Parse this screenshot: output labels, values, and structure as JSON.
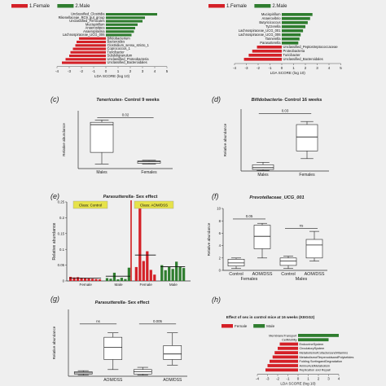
{
  "chart_data": [
    {
      "id": "a",
      "type": "bar",
      "orientation": "horizontal",
      "panel_label": "",
      "legend": [
        {
          "name": "1.Female",
          "color": "#d42027"
        },
        {
          "name": "2.Male",
          "color": "#2f7d2f"
        }
      ],
      "legend_placement": "top",
      "xlabel": "LDA SCORE (log 10)",
      "xlim": [
        -4,
        5
      ],
      "xticks": [
        -4,
        -3,
        -2,
        -1,
        0,
        1,
        2,
        3,
        4,
        5
      ],
      "rows": [
        {
          "label": "Unclassified_Clostridia",
          "value": 4.2,
          "group": 1
        },
        {
          "label": "Rikenellaceae_RC9_gut_group",
          "value": 3.2,
          "group": 1
        },
        {
          "label": "Unclassified_Firmicutes",
          "value": 3.0,
          "group": 1
        },
        {
          "label": "Mucispirillum",
          "value": 2.6,
          "group": 1
        },
        {
          "label": "Anaerostipes",
          "value": 2.4,
          "group": 1
        },
        {
          "label": "Anaeroplasma",
          "value": 2.3,
          "group": 1
        },
        {
          "label": "Lachnospiraceae_UCG_006",
          "value": 2.1,
          "group": 1
        },
        {
          "label": "Bifidobacterium",
          "value": -2.2,
          "group": 0
        },
        {
          "label": "Bacteroides",
          "value": -2.4,
          "group": 0
        },
        {
          "label": "Clostridium_sensu_stricto_1",
          "value": -2.5,
          "group": 0
        },
        {
          "label": "Coprococcus_1",
          "value": -2.7,
          "group": 0
        },
        {
          "label": "Turicibacter",
          "value": -2.9,
          "group": 0
        },
        {
          "label": "Subdoligranulum",
          "value": -3.0,
          "group": 0
        },
        {
          "label": "Unclassified_Proteobacteria",
          "value": -3.3,
          "group": 0
        },
        {
          "label": "Unclassified_Bacteroidales",
          "value": -3.6,
          "group": 0
        }
      ]
    },
    {
      "id": "b",
      "type": "bar",
      "orientation": "horizontal",
      "panel_label": "",
      "legend": [
        {
          "name": "1.Female",
          "color": "#d42027"
        },
        {
          "name": "2.Male",
          "color": "#2f7d2f"
        }
      ],
      "legend_placement": "top",
      "xlabel": "LDA SCORE (log 10)",
      "xlim": [
        -4,
        5
      ],
      "xticks": [
        -4,
        -3,
        -2,
        -1,
        0,
        1,
        2,
        3,
        4,
        5
      ],
      "rows": [
        {
          "label": "Mucispirillum",
          "value": 2.6,
          "group": 1
        },
        {
          "label": "Anaerovibrio",
          "value": 2.4,
          "group": 1
        },
        {
          "label": "Butyricicoccus",
          "value": 2.2,
          "group": 1
        },
        {
          "label": "Tyzzerella",
          "value": 2.0,
          "group": 1
        },
        {
          "label": "Lachnospiraceae_UCG_001",
          "value": 1.8,
          "group": 1
        },
        {
          "label": "Lachnospiraceae_UCG_006",
          "value": 1.6,
          "group": 1
        },
        {
          "label": "Tannerella",
          "value": 1.5,
          "group": 1
        },
        {
          "label": "Parasutterella",
          "value": 1.4,
          "group": 1
        },
        {
          "label": "Unclassified_Peptostreptococcaceae",
          "value": -2.1,
          "group": 0
        },
        {
          "label": "Proteobacteria",
          "value": -2.5,
          "group": 0
        },
        {
          "label": "Turicibacter",
          "value": -2.8,
          "group": 0
        },
        {
          "label": "Unclassified_Bacteroidales",
          "value": -3.2,
          "group": 0
        }
      ]
    },
    {
      "id": "c",
      "type": "box",
      "panel_label": "(c)",
      "title_italic": "Tenericutes",
      "title_rest": "- Control 9 weeks",
      "ylabel": "Relative abundance",
      "ylim": [
        0,
        2.5
      ],
      "categories": [
        "Males",
        "Females"
      ],
      "boxes": [
        {
          "min": 0.2,
          "q1": 0.7,
          "median": 1.9,
          "q3": 2.0,
          "max": 2.1
        },
        {
          "min": 0.2,
          "q1": 0.23,
          "median": 0.3,
          "q3": 0.33,
          "max": 0.36
        }
      ],
      "significance": [
        {
          "label": "0.02",
          "from": 0,
          "to": 1,
          "y": 2.2
        }
      ]
    },
    {
      "id": "d",
      "type": "box",
      "panel_label": "(d)",
      "title_italic": "Bifidobacteria",
      "title_rest": "- Control 16 weeks",
      "ylabel": "Relative abundance",
      "ylim": [
        0,
        20
      ],
      "categories": [
        "Males",
        "Females"
      ],
      "boxes": [
        {
          "min": 0.2,
          "q1": 0.5,
          "median": 1.1,
          "q3": 2.0,
          "max": 2.8
        },
        {
          "min": 4.0,
          "q1": 6.5,
          "median": 11.0,
          "q3": 15.0,
          "max": 16.0
        }
      ],
      "significance": [
        {
          "label": "0.03",
          "from": 0,
          "to": 1,
          "y": 18.5
        }
      ]
    },
    {
      "id": "e",
      "type": "bar",
      "panel_label": "(e)",
      "title_italic": "Parasutterella",
      "title_rest": "- Sex effect",
      "ylabel": "Relative abundance",
      "ylim": [
        0,
        0.25
      ],
      "yticks": [
        0,
        0.05,
        0.1,
        0.15,
        0.2,
        0.25
      ],
      "class_labels": [
        "Class: Control",
        "Class: AOM/DSS"
      ],
      "group_labels": [
        "Female",
        "Male",
        "Female",
        "Male"
      ],
      "groups": [
        {
          "color": "#d42027",
          "values": [
            0.013,
            0.011,
            0.012,
            0.01,
            0.009,
            0.008,
            0.007,
            0.006,
            0.005
          ]
        },
        {
          "color": "#2f7d2f",
          "values": [
            0.009,
            0.007,
            0.026,
            0.005,
            0.01,
            0.006,
            0.042
          ]
        },
        {
          "color": "#d42027",
          "values": [
            0.044,
            0.235,
            0.063,
            0.094,
            0.035,
            0.02
          ]
        },
        {
          "color": "#2f7d2f",
          "values": [
            0.05,
            0.034,
            0.045,
            0.038,
            0.061,
            0.046,
            0.041
          ]
        }
      ],
      "means": [
        0.009,
        0.015,
        0.082,
        0.045
      ]
    },
    {
      "id": "f",
      "type": "box",
      "panel_label": "(f)",
      "title_italic": "Prevotellaceae_UCG_001",
      "title_rest": "",
      "ylabel": "Relative abundance",
      "ylim": [
        0,
        10
      ],
      "yticks": [
        0,
        2,
        4,
        6,
        8,
        10
      ],
      "categories": [
        "Control",
        "AOM/DSS",
        "Control",
        "AOM/DSS"
      ],
      "group_labels": [
        "Females",
        "Males"
      ],
      "boxes": [
        {
          "min": 0.3,
          "q1": 0.7,
          "median": 1.2,
          "q3": 1.8,
          "max": 2.0
        },
        {
          "min": 2.0,
          "q1": 3.5,
          "median": 5.5,
          "q3": 7.3,
          "max": 7.6
        },
        {
          "min": 0.3,
          "q1": 0.8,
          "median": 1.5,
          "q3": 2.0,
          "max": 2.3
        },
        {
          "min": 1.5,
          "q1": 2.0,
          "median": 4.1,
          "q3": 5.0,
          "max": 6.3
        }
      ],
      "significance": [
        {
          "label": "0.05",
          "from": 0,
          "to": 1,
          "y": 8.3
        },
        {
          "label": "ns",
          "from": 2,
          "to": 3,
          "y": 6.8
        }
      ]
    },
    {
      "id": "g",
      "type": "box",
      "panel_label": "(g)",
      "title_italic": "Parasutterella",
      "title_rest": "- Sex effect",
      "ylabel": "Relative abundance",
      "ylim": [
        0,
        0.12
      ],
      "categories": [
        "",
        "AOM/DSS",
        "",
        "AOM/DSS"
      ],
      "boxes": [
        {
          "min": 0.002,
          "q1": 0.004,
          "median": 0.006,
          "q3": 0.008,
          "max": 0.01
        },
        {
          "min": 0.012,
          "q1": 0.03,
          "median": 0.052,
          "q3": 0.07,
          "max": 0.078
        },
        {
          "min": 0.002,
          "q1": 0.004,
          "median": 0.008,
          "q3": 0.012,
          "max": 0.016
        },
        {
          "min": 0.02,
          "q1": 0.03,
          "median": 0.04,
          "q3": 0.055,
          "max": 0.078
        }
      ],
      "significance": [
        {
          "label": "ns",
          "from": 0,
          "to": 1,
          "y": 0.094
        },
        {
          "label": "0.005",
          "from": 2,
          "to": 3,
          "y": 0.094
        }
      ]
    },
    {
      "id": "h",
      "type": "bar",
      "orientation": "horizontal",
      "panel_label": "(h)",
      "title": "Effect of sex in control mice at 16 weeks (KEGG2)",
      "legend": [
        {
          "name": "Female",
          "color": "#d42027"
        },
        {
          "name": "Male",
          "color": "#2f7d2f"
        }
      ],
      "legend_placement": "top-left",
      "xlabel": "LDA SCORE (log 10)",
      "xlim": [
        -4,
        4
      ],
      "xticks": [
        -4,
        -3,
        -2,
        -1,
        0,
        1,
        2,
        3,
        4
      ],
      "rows": [
        {
          "label": "MembraneTransport",
          "value": 4.0,
          "group": 1
        },
        {
          "label": "CellMotility",
          "value": 3.0,
          "group": 1
        },
        {
          "label": "EndocrineSystem",
          "value": -1.8,
          "group": 0
        },
        {
          "label": "CirculatorySystem",
          "value": -2.0,
          "group": 0
        },
        {
          "label": "MetabolismofCofactorsandVitamins",
          "value": -2.3,
          "group": 0
        },
        {
          "label": "MetabolismofTerpenoidsandPolyketides",
          "value": -2.5,
          "group": 0
        },
        {
          "label": "Folding SortingandDegradation",
          "value": -2.8,
          "group": 0
        },
        {
          "label": "AminoAcidMetabolism",
          "value": -3.0,
          "group": 0
        },
        {
          "label": "Replication and Repair",
          "value": -3.2,
          "group": 0
        }
      ]
    }
  ]
}
